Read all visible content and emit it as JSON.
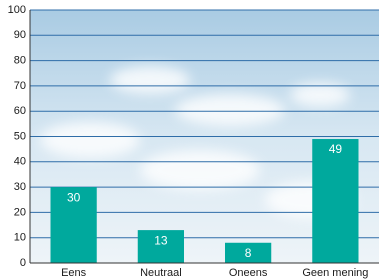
{
  "chart_data": {
    "type": "bar",
    "categories": [
      "Eens",
      "Neutraal",
      "Oneens",
      "Geen mening"
    ],
    "values": [
      30,
      13,
      8,
      49
    ],
    "color": "#00a99d",
    "ylim": [
      0,
      100
    ],
    "yticks": [
      0,
      10,
      20,
      30,
      40,
      50,
      60,
      70,
      80,
      90,
      100
    ],
    "grid": true
  }
}
